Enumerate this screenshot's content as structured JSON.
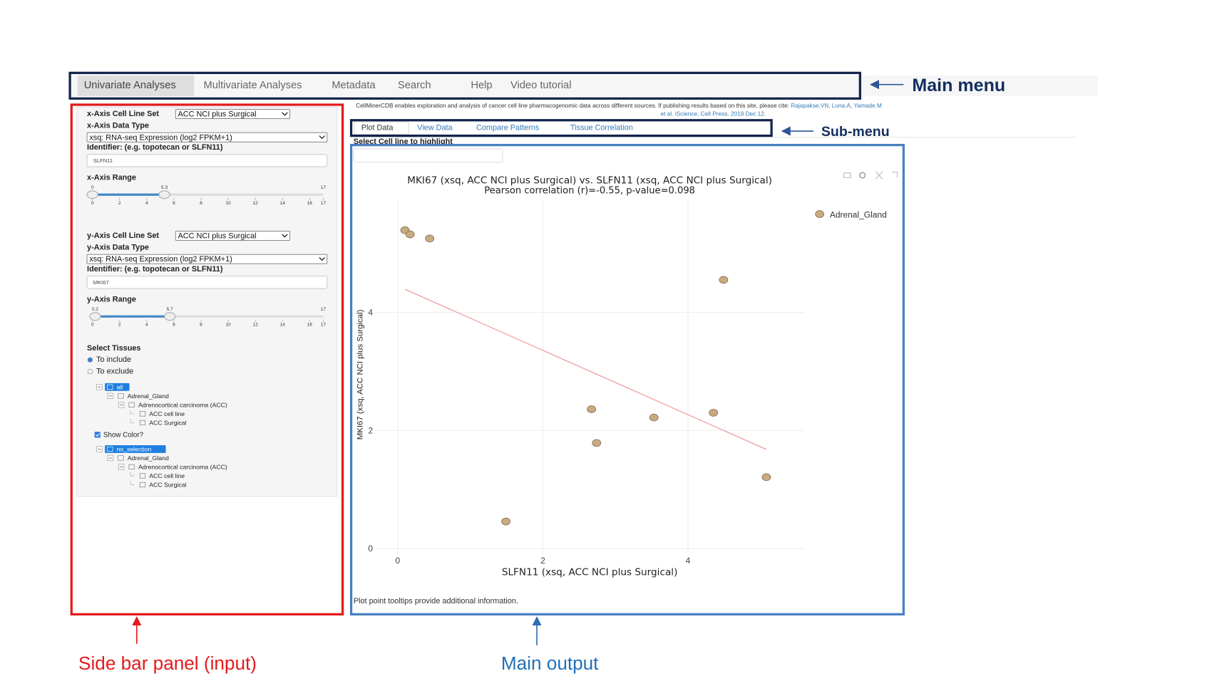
{
  "main_menu": {
    "tabs": [
      "Univariate Analyses",
      "Multivariate Analyses",
      "Metadata",
      "Search",
      "Help",
      "Video tutorial"
    ],
    "annotation": "Main menu"
  },
  "citation": {
    "text": "CellMinerCDB enables exploration and analysis of cancer cell line pharmacogenomic data across different sources. If publishing results based on this site, please cite: ",
    "link_lines": [
      "Rajapakse.VN, Luna.A, Yamade.M",
      "et al. iScience, Cell Press. 2018 Dec 12."
    ]
  },
  "sidebar": {
    "annotation": "Side bar panel (input)",
    "x_axis": {
      "cell_line_set_label": "x-Axis Cell Line Set",
      "cell_line_set": "ACC NCI plus Surgical",
      "data_type_label": "x-Axis Data Type",
      "data_type": "xsq: RNA-seq Expression (log2 FPKM+1)",
      "identifier_label": "Identifier: (e.g. topotecan or SLFN11)",
      "identifier": "SLFN11",
      "range_label": "x-Axis Range",
      "range": [
        0,
        5.3
      ],
      "max": 17,
      "ticks": [
        0,
        2,
        4,
        6,
        8,
        10,
        12,
        14,
        16,
        17
      ]
    },
    "y_axis": {
      "cell_line_set_label": "y-Axis Cell Line Set",
      "cell_line_set": "ACC NCI plus Surgical",
      "data_type_label": "y-Axis Data Type",
      "data_type": "xsq: RNA-seq Expression (log2 FPKM+1)",
      "identifier_label": "Identifier: (e.g. topotecan or SLFN11)",
      "identifier": "MKI67",
      "range_label": "y-Axis Range",
      "range": [
        0.2,
        5.7
      ],
      "max": 17,
      "ticks": [
        0,
        2,
        4,
        6,
        8,
        10,
        12,
        14,
        16,
        17
      ]
    },
    "tissues": {
      "title": "Select Tissues",
      "options": [
        "To include",
        "To exclude"
      ],
      "selected": 0,
      "tree": {
        "label": "all",
        "children": [
          {
            "label": "Adrenal_Gland",
            "children": [
              {
                "label": "Adrenocortical carcinoma (ACC)",
                "children": [
                  {
                    "label": "ACC cell line"
                  },
                  {
                    "label": "ACC Surgical"
                  }
                ]
              }
            ]
          }
        ]
      },
      "show_color_label": "Show Color?",
      "show_color": true,
      "tree2": {
        "label": "no_selection",
        "children": [
          {
            "label": "Adrenal_Gland",
            "children": [
              {
                "label": "Adrenocortical carcinoma (ACC)",
                "children": [
                  {
                    "label": "ACC cell line"
                  },
                  {
                    "label": "ACC Surgical"
                  }
                ]
              }
            ]
          }
        ]
      }
    }
  },
  "sub_menu": {
    "tabs": [
      "Plot Data",
      "View Data",
      "Compare Patterns",
      "Tissue Correlation"
    ],
    "annotation": "Sub-menu"
  },
  "main_output": {
    "annotation": "Main output",
    "highlight_label": "Select Cell line to highlight",
    "footnote": "Plot point tooltips provide additional information.",
    "chart_data": {
      "type": "scatter",
      "title": "MKI67 (xsq, ACC NCI plus Surgical) vs. SLFN11 (xsq, ACC NCI plus Surgical)",
      "subtitle": "Pearson correlation (r)=-0.55, p-value=0.098",
      "x_label": "SLFN11 (xsq, ACC NCI plus Surgical)",
      "y_label": "MKI67 (xsq, ACC NCI plus Surgical)",
      "series": [
        {
          "name": "Adrenal_Gland",
          "color": "#c8ab82",
          "x": [
            0.1,
            0.17,
            0.44,
            4.49,
            2.67,
            3.53,
            4.35,
            2.74,
            5.08,
            1.49
          ],
          "y": [
            5.39,
            5.32,
            5.25,
            4.55,
            2.36,
            2.22,
            2.3,
            1.79,
            1.21,
            0.46
          ]
        }
      ],
      "trend_line": {
        "color": "#ef8c8c",
        "x": [
          0.1,
          5.08
        ],
        "y": [
          4.39,
          1.68
        ]
      },
      "xlim": [
        -0.31,
        5.6
      ],
      "ylim": [
        -0.1,
        5.9
      ],
      "xticks": [
        0,
        2,
        4
      ],
      "yticks": [
        0,
        2,
        4
      ],
      "grid": true
    }
  }
}
